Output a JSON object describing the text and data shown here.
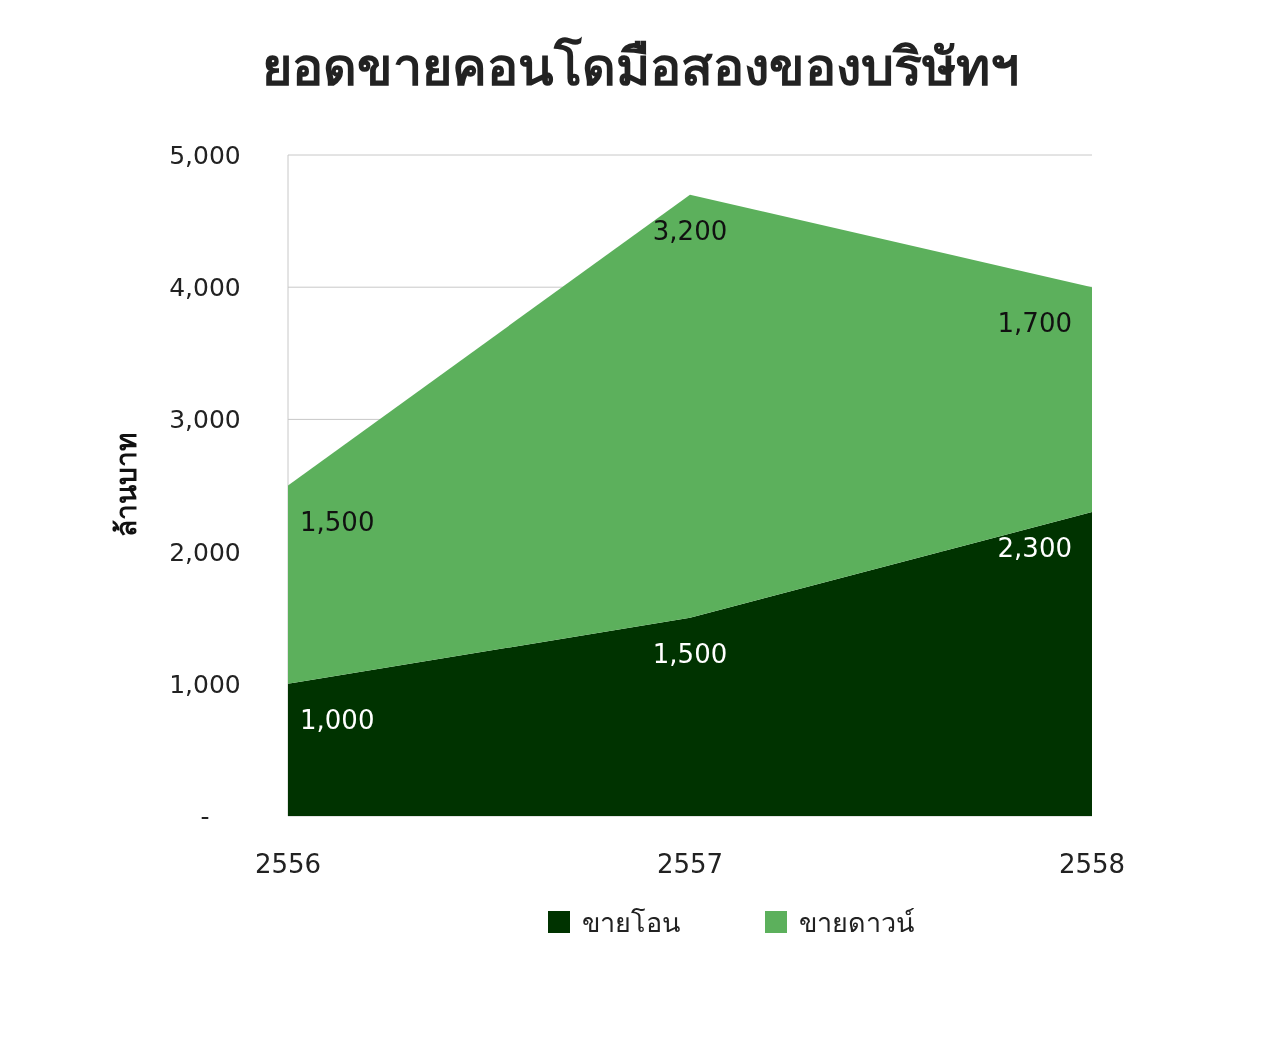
{
  "chart_data": {
    "type": "area",
    "title": "ยอดขายคอนโดมือสองของบริษัทฯ",
    "ylabel": "ล้านบาท",
    "categories": [
      "2556",
      "2557",
      "2558"
    ],
    "stacked": true,
    "series": [
      {
        "name": "ขายโอน",
        "color": "#003300",
        "values": [
          1000,
          1500,
          2300
        ],
        "value_labels": [
          "1,000",
          "1,500",
          "2,300"
        ]
      },
      {
        "name": "ขายดาวน์",
        "color": "#5cb05c",
        "values": [
          1500,
          3200,
          1700
        ],
        "value_labels": [
          "1,500",
          "3,200",
          "1,700"
        ]
      }
    ],
    "ylim": [
      0,
      5000
    ],
    "yticks": [
      {
        "value": 0,
        "label": "-"
      },
      {
        "value": 1000,
        "label": "1,000"
      },
      {
        "value": 2000,
        "label": "2,000"
      },
      {
        "value": 3000,
        "label": "3,000"
      },
      {
        "value": 4000,
        "label": "4,000"
      },
      {
        "value": 5000,
        "label": "5,000"
      }
    ],
    "grid": "y",
    "legend": "bottom"
  }
}
